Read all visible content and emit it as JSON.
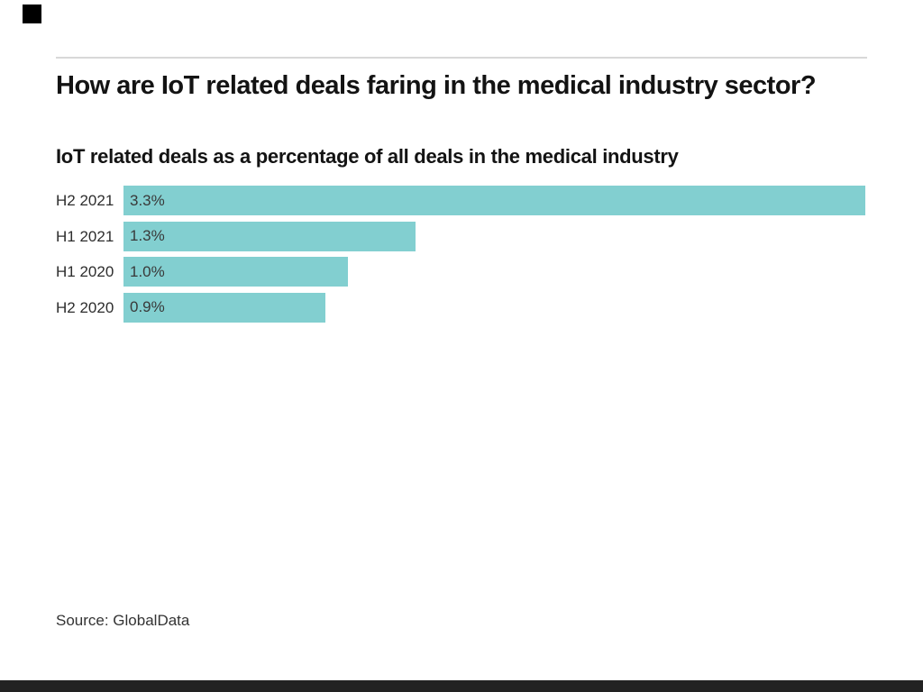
{
  "page": {
    "background_color": "#ffffff"
  },
  "branding": {
    "square_color": "#000000",
    "bottom_bar_color": "#222222",
    "rule_color": "#d8d8d8"
  },
  "header": {
    "title": "How are IoT related deals faring in the medical industry sector?",
    "subtitle": "IoT related deals as a percentage of all deals in the medical industry"
  },
  "chart_data": {
    "type": "bar",
    "orientation": "horizontal",
    "title": "How are IoT related deals faring in the medical industry sector?",
    "subtitle": "IoT related deals as a percentage of all deals in the medical industry",
    "categories": [
      "H2 2021",
      "H1 2021",
      "H1 2020",
      "H2 2020"
    ],
    "values": [
      3.3,
      1.3,
      1.0,
      0.9
    ],
    "value_labels": [
      "3.3%",
      "1.3%",
      "1.0%",
      "0.9%"
    ],
    "xlabel": "",
    "ylabel": "",
    "xlim": [
      0,
      3.3
    ],
    "bar_color": "#82cfd0",
    "grid": false,
    "legend": false
  },
  "footer": {
    "source": "Source: GlobalData"
  }
}
